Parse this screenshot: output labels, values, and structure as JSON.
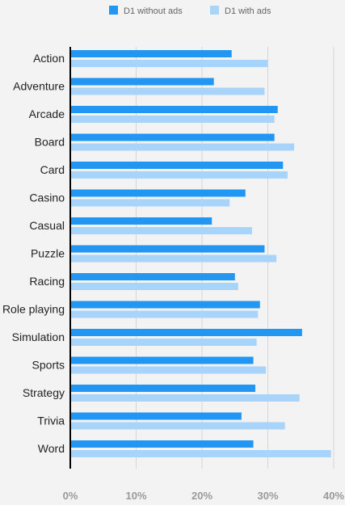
{
  "chart_data": {
    "type": "bar",
    "orientation": "horizontal",
    "categories": [
      "Action",
      "Adventure",
      "Arcade",
      "Board",
      "Card",
      "Casino",
      "Casual",
      "Puzzle",
      "Racing",
      "Role playing",
      "Simulation",
      "Sports",
      "Strategy",
      "Trivia",
      "Word"
    ],
    "series": [
      {
        "name": "D1 without ads",
        "color": "#2196f3",
        "values": [
          24.5,
          21.8,
          31.5,
          31.0,
          32.3,
          26.6,
          21.5,
          29.5,
          25.0,
          28.8,
          35.2,
          27.8,
          28.1,
          26.0,
          27.8
        ]
      },
      {
        "name": "D1 with ads",
        "color": "#a8d4fa",
        "values": [
          30.0,
          29.5,
          31.0,
          34.0,
          33.0,
          24.2,
          27.6,
          31.3,
          25.5,
          28.5,
          28.3,
          29.7,
          34.8,
          32.6,
          39.6
        ]
      }
    ],
    "xlim": [
      0,
      40
    ],
    "xticks": [
      "0%",
      "10%",
      "20%",
      "30%",
      "40%"
    ],
    "xlabel": "",
    "ylabel": "",
    "grid": true,
    "legend_position": "top-center"
  }
}
